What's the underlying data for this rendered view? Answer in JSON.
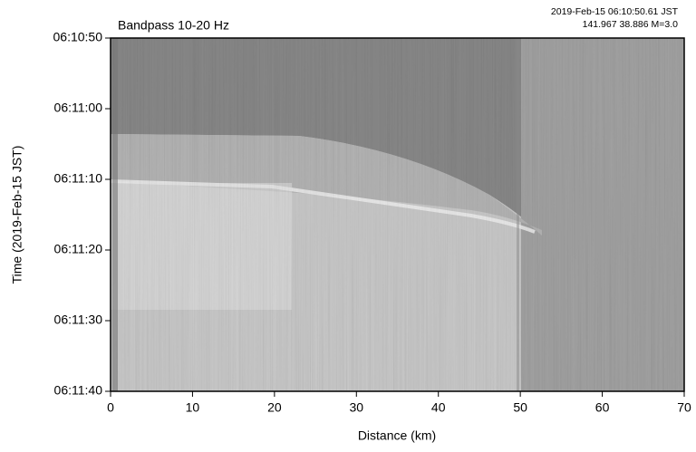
{
  "chart_data": {
    "type": "raster",
    "title": "Bandpass 10-20 Hz",
    "annotations": [
      "2019-Feb-15 06:10:50.61 JST",
      "141.967 38.886 M=3.0"
    ],
    "x_label": "Distance (km)",
    "y_label": "Time (2019-Feb-15 JST)",
    "xlim": [
      0,
      70
    ],
    "xticks": [
      0,
      10,
      20,
      30,
      40,
      50,
      60,
      70
    ],
    "ylim": [
      "06:10:50",
      "06:11:40"
    ],
    "yticks": [
      "06:10:50",
      "06:11:00",
      "06:11:10",
      "06:11:20",
      "06:11:30",
      "06:11:40"
    ],
    "y_inverted": true
  }
}
